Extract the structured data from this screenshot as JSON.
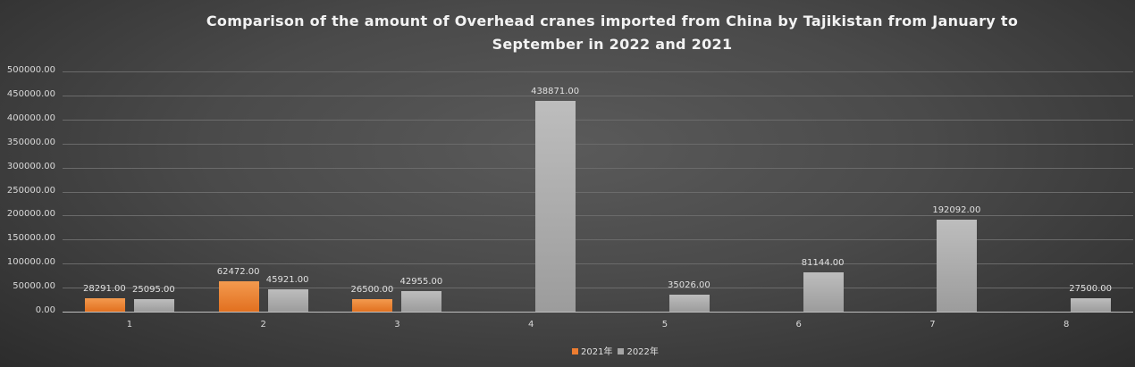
{
  "chart_data": {
    "type": "bar",
    "title": "Comparison of the amount of Overhead cranes imported from China by Tajikistan from January to September in 2022 and 2021",
    "title_lines": [
      "Comparison of the amount of Overhead cranes imported from China by Tajikistan from January to",
      "September in 2022 and 2021"
    ],
    "categories": [
      "1",
      "2",
      "3",
      "4",
      "5",
      "6",
      "7",
      "8"
    ],
    "series": [
      {
        "name": "2021年",
        "color": "#ed7d31",
        "values": [
          28291.0,
          62472.0,
          26500.0,
          null,
          null,
          null,
          null,
          null
        ]
      },
      {
        "name": "2022年",
        "color": "#a5a5a5",
        "values": [
          25095.0,
          45921.0,
          42955.0,
          438871.0,
          35026.0,
          81144.0,
          192092.0,
          27500.0
        ]
      }
    ],
    "xlabel": "",
    "ylabel": "",
    "ylim": [
      0,
      500000
    ],
    "yticks": [
      "0.00",
      "50000.00",
      "100000.00",
      "150000.00",
      "200000.00",
      "250000.00",
      "300000.00",
      "350000.00",
      "400000.00",
      "450000.00",
      "500000.00"
    ],
    "grid": true,
    "legend_position": "bottom"
  }
}
